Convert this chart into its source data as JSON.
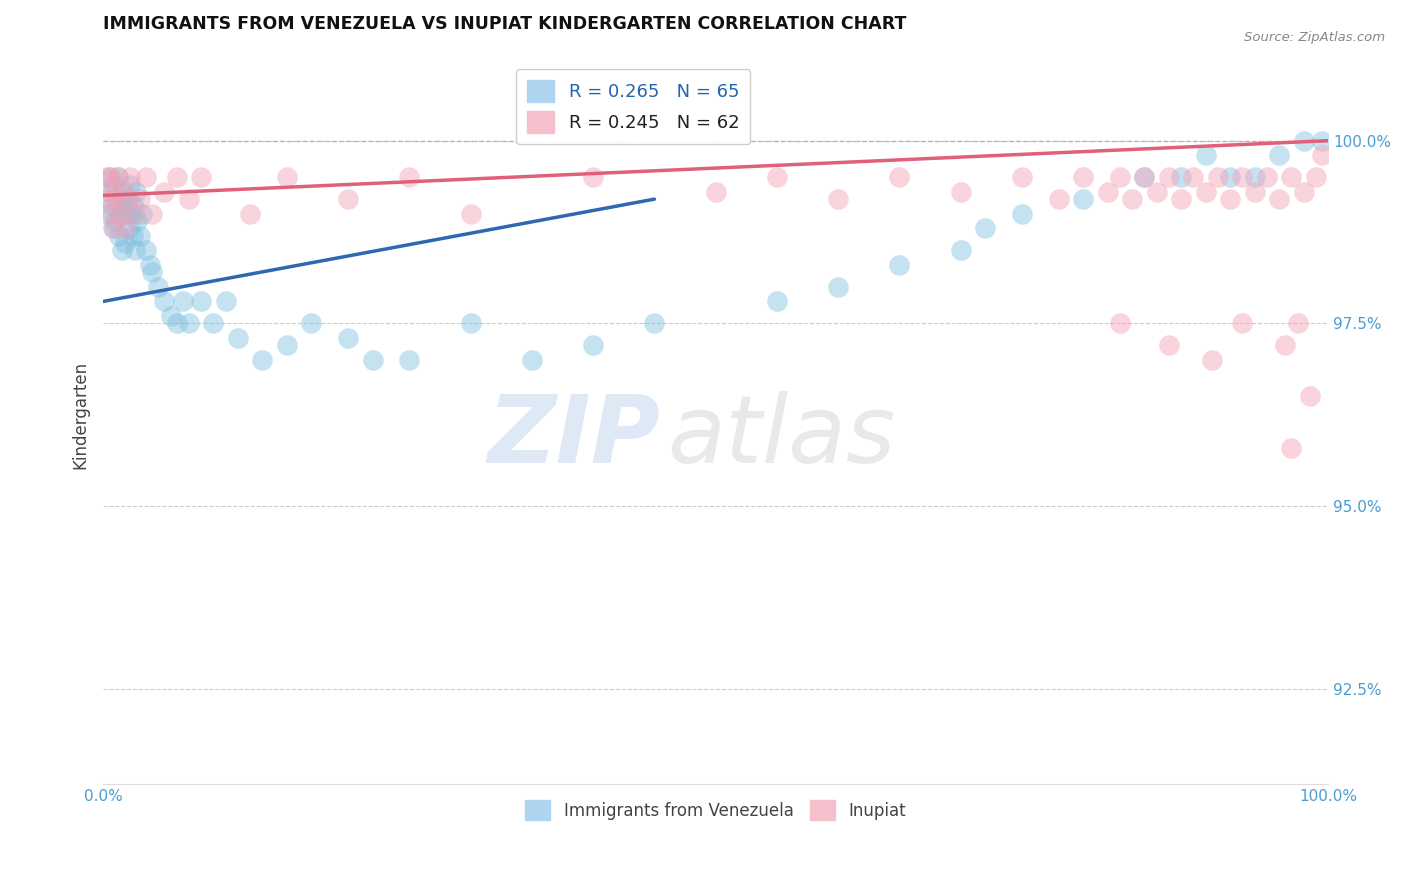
{
  "title": "IMMIGRANTS FROM VENEZUELA VS INUPIAT KINDERGARTEN CORRELATION CHART",
  "source": "Source: ZipAtlas.com",
  "ylabel": "Kindergarten",
  "ytick_labels": [
    "92.5%",
    "95.0%",
    "97.5%",
    "100.0%"
  ],
  "ytick_values": [
    92.5,
    95.0,
    97.5,
    100.0
  ],
  "xlim": [
    0.0,
    100.0
  ],
  "ylim": [
    91.2,
    101.3
  ],
  "legend_blue_label": "R = 0.265   N = 65",
  "legend_pink_label": "R = 0.245   N = 62",
  "legend_bottom_blue": "Immigrants from Venezuela",
  "legend_bottom_pink": "Inupiat",
  "blue_color": "#7fbfdf",
  "pink_color": "#f4a0b5",
  "blue_line_color": "#3068b0",
  "pink_line_color": "#e0607a",
  "blue_scatter_x": [
    0.3,
    0.5,
    0.6,
    0.7,
    0.8,
    0.9,
    1.0,
    1.1,
    1.2,
    1.3,
    1.4,
    1.5,
    1.6,
    1.7,
    1.8,
    1.9,
    2.0,
    2.1,
    2.2,
    2.3,
    2.4,
    2.5,
    2.6,
    2.7,
    2.8,
    3.0,
    3.2,
    3.5,
    3.8,
    4.0,
    4.5,
    5.0,
    5.5,
    6.0,
    6.5,
    7.0,
    8.0,
    9.0,
    10.0,
    11.0,
    13.0,
    15.0,
    17.0,
    20.0,
    22.0,
    25.0,
    30.0,
    35.0,
    40.0,
    45.0,
    55.0,
    60.0,
    65.0,
    70.0,
    72.0,
    75.0,
    80.0,
    85.0,
    88.0,
    90.0,
    92.0,
    94.0,
    96.0,
    98.0,
    99.5
  ],
  "blue_scatter_y": [
    99.0,
    99.3,
    99.5,
    99.1,
    98.8,
    99.4,
    98.9,
    99.2,
    99.5,
    98.7,
    99.0,
    98.5,
    99.1,
    99.3,
    98.6,
    99.0,
    99.2,
    98.8,
    99.4,
    99.0,
    98.7,
    99.1,
    98.5,
    99.3,
    98.9,
    98.7,
    99.0,
    98.5,
    98.3,
    98.2,
    98.0,
    97.8,
    97.6,
    97.5,
    97.8,
    97.5,
    97.8,
    97.5,
    97.8,
    97.3,
    97.0,
    97.2,
    97.5,
    97.3,
    97.0,
    97.0,
    97.5,
    97.0,
    97.2,
    97.5,
    97.8,
    98.0,
    98.3,
    98.5,
    98.8,
    99.0,
    99.2,
    99.5,
    99.5,
    99.8,
    99.5,
    99.5,
    99.8,
    100.0,
    100.0
  ],
  "pink_scatter_x": [
    0.3,
    0.5,
    0.6,
    0.7,
    0.8,
    0.9,
    1.0,
    1.2,
    1.4,
    1.6,
    1.8,
    2.0,
    2.2,
    2.5,
    3.0,
    3.5,
    4.0,
    5.0,
    6.0,
    7.0,
    8.0,
    12.0,
    15.0,
    20.0,
    25.0,
    30.0,
    40.0,
    50.0,
    55.0,
    60.0,
    65.0,
    70.0,
    75.0,
    78.0,
    80.0,
    82.0,
    83.0,
    84.0,
    85.0,
    86.0,
    87.0,
    88.0,
    89.0,
    90.0,
    91.0,
    92.0,
    93.0,
    94.0,
    95.0,
    96.0,
    97.0,
    98.0,
    99.0,
    99.5,
    83.0,
    87.0,
    90.5,
    93.0,
    96.5,
    97.5,
    97.0,
    98.5
  ],
  "pink_scatter_y": [
    99.5,
    99.2,
    99.5,
    99.0,
    99.3,
    98.8,
    99.2,
    99.5,
    99.0,
    99.3,
    98.8,
    99.2,
    99.5,
    99.0,
    99.2,
    99.5,
    99.0,
    99.3,
    99.5,
    99.2,
    99.5,
    99.0,
    99.5,
    99.2,
    99.5,
    99.0,
    99.5,
    99.3,
    99.5,
    99.2,
    99.5,
    99.3,
    99.5,
    99.2,
    99.5,
    99.3,
    99.5,
    99.2,
    99.5,
    99.3,
    99.5,
    99.2,
    99.5,
    99.3,
    99.5,
    99.2,
    99.5,
    99.3,
    99.5,
    99.2,
    99.5,
    99.3,
    99.5,
    99.8,
    97.5,
    97.2,
    97.0,
    97.5,
    97.2,
    97.5,
    95.8,
    96.5
  ],
  "blue_line_x": [
    0,
    45
  ],
  "blue_line_y": [
    97.8,
    99.2
  ],
  "pink_line_x": [
    0,
    100
  ],
  "pink_line_y": [
    99.25,
    100.0
  ],
  "dashed_line_y": 100.0
}
